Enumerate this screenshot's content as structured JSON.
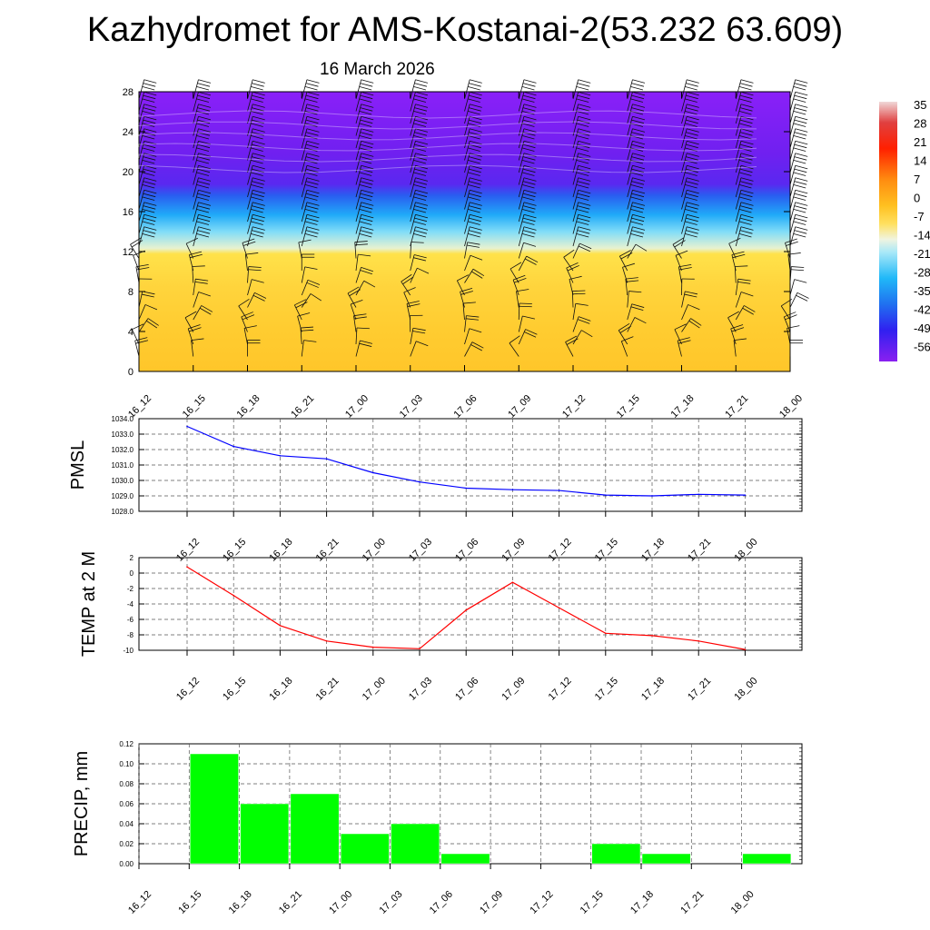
{
  "title": "Kazhydromet for AMS-Kostanai-2(53.232 63.609)",
  "subtitle": "16 March 2026",
  "time_labels": [
    "16_12",
    "16_15",
    "16_18",
    "16_21",
    "17_00",
    "17_03",
    "17_06",
    "17_09",
    "17_12",
    "17_15",
    "17_18",
    "17_21",
    "18_00"
  ],
  "chart_data": [
    {
      "type": "heatmap",
      "name": "cross-section",
      "ylabel": "",
      "ylim": [
        0,
        28
      ],
      "y_ticks": [
        "0",
        "4",
        "8",
        "12",
        "16",
        "20",
        "24",
        "28"
      ],
      "x_ticks": [
        "16_12",
        "16_15",
        "16_18",
        "16_21",
        "17_00",
        "17_03",
        "17_06",
        "17_09",
        "17_12",
        "17_15",
        "17_18",
        "17_21",
        "18_00"
      ],
      "colorbar_labels": [
        "35",
        "28",
        "21",
        "14",
        "7",
        "0",
        "-7",
        "-14",
        "-21",
        "-28",
        "-35",
        "-42",
        "-49",
        "-56"
      ],
      "colorbar_range": [
        -56,
        35
      ],
      "colors": {
        "high": "#f0e8e8",
        "warm": "#ffd23c",
        "cold": "#20c8ff",
        "coldest": "#8a20f8"
      }
    },
    {
      "type": "line",
      "name": "PMSL",
      "ylabel": "PMSL",
      "ylim": [
        1028.0,
        1034.0
      ],
      "y_ticks": [
        "1028.0",
        "1029.0",
        "1030.0",
        "1031.0",
        "1032.0",
        "1033.0",
        "1034.0"
      ],
      "categories": [
        "16_12",
        "16_15",
        "16_18",
        "16_21",
        "17_00",
        "17_03",
        "17_06",
        "17_09",
        "17_12",
        "17_15",
        "17_18",
        "17_21",
        "18_00"
      ],
      "values": [
        1033.5,
        1032.2,
        1031.6,
        1031.4,
        1030.5,
        1029.9,
        1029.5,
        1029.4,
        1029.35,
        1029.05,
        1029.0,
        1029.1,
        1029.05
      ],
      "color": "#0000ff"
    },
    {
      "type": "line",
      "name": "TEMP",
      "ylabel": "TEMP at 2 M",
      "ylim": [
        -10,
        2
      ],
      "y_ticks": [
        "-10",
        "-8",
        "-6",
        "-4",
        "-2",
        "0",
        "2"
      ],
      "categories": [
        "16_12",
        "16_15",
        "16_18",
        "16_21",
        "17_00",
        "17_03",
        "17_06",
        "17_09",
        "17_12",
        "17_15",
        "17_18",
        "17_21",
        "18_00"
      ],
      "values": [
        0.8,
        -2.9,
        -6.8,
        -8.8,
        -9.6,
        -9.8,
        -4.8,
        -1.2,
        -4.5,
        -7.8,
        -8.1,
        -8.8,
        -9.9
      ],
      "color": "#ff0000"
    },
    {
      "type": "bar",
      "name": "PRECIP",
      "ylabel": "PRECIP, mm",
      "ylim": [
        0,
        0.12
      ],
      "y_ticks": [
        "0.00",
        "0.02",
        "0.04",
        "0.06",
        "0.08",
        "0.10",
        "0.12"
      ],
      "categories": [
        "16_12",
        "16_15",
        "16_18",
        "16_21",
        "17_00",
        "17_03",
        "17_06",
        "17_09",
        "17_12",
        "17_15",
        "17_18",
        "17_21",
        "18_00"
      ],
      "values": [
        0,
        0.11,
        0.06,
        0.07,
        0.03,
        0.04,
        0.01,
        0,
        0,
        0.02,
        0.01,
        0,
        0.01
      ],
      "color": "#00ff00"
    }
  ]
}
